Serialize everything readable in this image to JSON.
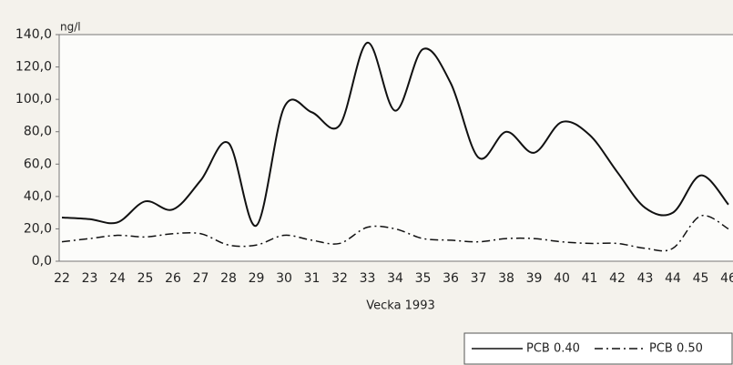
{
  "chart_data": {
    "type": "line",
    "y_unit": "ng/l",
    "x_axis_label": "Vecka 1993",
    "categories": [
      "22",
      "23",
      "24",
      "25",
      "26",
      "27",
      "28",
      "29",
      "30",
      "31",
      "32",
      "33",
      "34",
      "35",
      "36",
      "37",
      "38",
      "39",
      "40",
      "41",
      "42",
      "43",
      "44",
      "45",
      "46"
    ],
    "series": [
      {
        "name": "PCB 0.40",
        "color": "#111111",
        "dash": "solid",
        "values": [
          27,
          26,
          24,
          37,
          32,
          50,
          73,
          22,
          95,
          92,
          84,
          135,
          93,
          131,
          110,
          64,
          80,
          67,
          86,
          78,
          55,
          33,
          30,
          53,
          35
        ]
      },
      {
        "name": "PCB 0.50",
        "color": "#111111",
        "dash": "dashdot",
        "values": [
          12,
          14,
          16,
          15,
          17,
          17,
          10,
          10,
          16,
          13,
          11,
          21,
          20,
          14,
          13,
          12,
          14,
          14,
          12,
          11,
          11,
          8,
          8,
          28,
          20
        ]
      }
    ],
    "ylim": [
      0,
      140
    ],
    "yticks": [
      {
        "value": 0,
        "label": "0,0"
      },
      {
        "value": 20,
        "label": "20,0"
      },
      {
        "value": 40,
        "label": "40,0"
      },
      {
        "value": 60,
        "label": "60,0"
      },
      {
        "value": 80,
        "label": "80,0"
      },
      {
        "value": 100,
        "label": "100,0"
      },
      {
        "value": 120,
        "label": "120,0"
      },
      {
        "value": 140,
        "label": "140,0"
      }
    ],
    "grid": false,
    "legend": "bottom-right"
  }
}
